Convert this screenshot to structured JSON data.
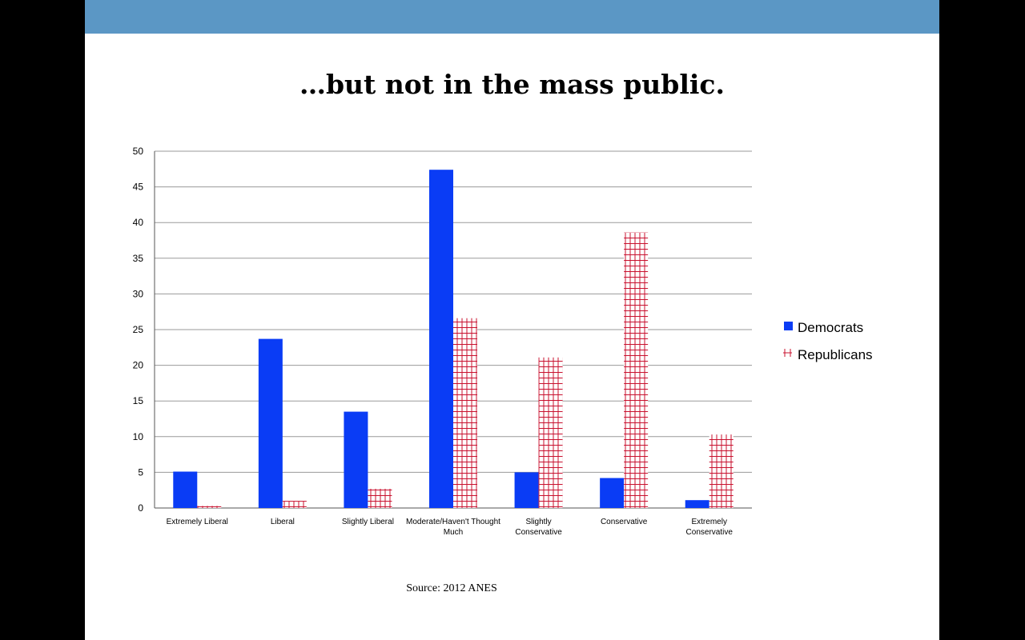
{
  "slide": {
    "title": "…but not in the mass public.",
    "source": "Source: 2012 ANES",
    "accent_color": "#5b97c5"
  },
  "chart_data": {
    "type": "bar",
    "categories": [
      "Extremely Liberal",
      "Liberal",
      "Slightly Liberal",
      "Moderate/Haven't Thought Much",
      "Slightly Conservative",
      "Conservative",
      "Extremely Conservative"
    ],
    "series": [
      {
        "name": "Democrats",
        "values": [
          5.1,
          23.7,
          13.5,
          47.4,
          5.0,
          4.2,
          1.1
        ],
        "color": "#0a3cf5",
        "pattern": "solid"
      },
      {
        "name": "Republicans",
        "values": [
          0.3,
          1.0,
          2.7,
          26.6,
          21.1,
          38.6,
          10.3
        ],
        "color": "#c8102e",
        "pattern": "grid"
      }
    ],
    "ylim": [
      0,
      50
    ],
    "yticks": [
      0,
      5,
      10,
      15,
      20,
      25,
      30,
      35,
      40,
      45,
      50
    ],
    "grid": true,
    "legend_position": "right",
    "xlabel": "",
    "ylabel": ""
  }
}
